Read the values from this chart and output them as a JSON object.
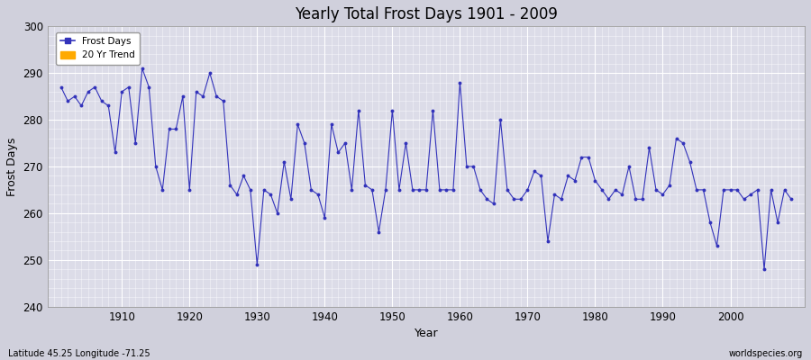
{
  "title": "Yearly Total Frost Days 1901 - 2009",
  "xlabel": "Year",
  "ylabel": "Frost Days",
  "footnote_left": "Latitude 45.25 Longitude -71.25",
  "footnote_right": "worldspecies.org",
  "legend": [
    "Frost Days",
    "20 Yr Trend"
  ],
  "legend_colors": [
    "#3333bb",
    "#ffaa00"
  ],
  "line_color": "#3333bb",
  "outer_bg": "#d0d0dc",
  "plot_bg": "#dcdce8",
  "grid_major_color": "#c8c8d4",
  "grid_minor_color": "#c8c8d4",
  "ylim": [
    240,
    300
  ],
  "yticks": [
    240,
    250,
    260,
    270,
    280,
    290,
    300
  ],
  "xlim": [
    1899,
    2011
  ],
  "xticks": [
    1910,
    1920,
    1930,
    1940,
    1950,
    1960,
    1970,
    1980,
    1990,
    2000
  ],
  "years": [
    1901,
    1902,
    1903,
    1904,
    1905,
    1906,
    1907,
    1908,
    1909,
    1910,
    1911,
    1912,
    1913,
    1914,
    1915,
    1916,
    1917,
    1918,
    1919,
    1920,
    1921,
    1922,
    1923,
    1924,
    1925,
    1926,
    1927,
    1928,
    1929,
    1930,
    1931,
    1932,
    1933,
    1934,
    1935,
    1936,
    1937,
    1938,
    1939,
    1940,
    1941,
    1942,
    1943,
    1944,
    1945,
    1946,
    1947,
    1948,
    1949,
    1950,
    1951,
    1952,
    1953,
    1954,
    1955,
    1956,
    1957,
    1958,
    1959,
    1960,
    1961,
    1962,
    1963,
    1964,
    1965,
    1966,
    1967,
    1968,
    1969,
    1970,
    1971,
    1972,
    1973,
    1974,
    1975,
    1976,
    1977,
    1978,
    1979,
    1980,
    1981,
    1982,
    1983,
    1984,
    1985,
    1986,
    1987,
    1988,
    1989,
    1990,
    1991,
    1992,
    1993,
    1994,
    1995,
    1996,
    1997,
    1998,
    1999,
    2000,
    2001,
    2002,
    2003,
    2004,
    2005,
    2006,
    2007,
    2008,
    2009
  ],
  "values": [
    287,
    284,
    285,
    283,
    286,
    287,
    284,
    283,
    273,
    286,
    287,
    275,
    291,
    287,
    270,
    265,
    278,
    278,
    285,
    265,
    286,
    285,
    290,
    285,
    284,
    266,
    264,
    268,
    265,
    249,
    265,
    264,
    260,
    271,
    263,
    279,
    275,
    265,
    264,
    259,
    279,
    273,
    275,
    265,
    282,
    266,
    265,
    256,
    265,
    282,
    265,
    275,
    265,
    265,
    265,
    282,
    265,
    265,
    265,
    288,
    270,
    270,
    265,
    263,
    262,
    280,
    265,
    263,
    263,
    265,
    269,
    268,
    254,
    264,
    263,
    268,
    267,
    272,
    272,
    267,
    265,
    263,
    265,
    264,
    270,
    263,
    263,
    274,
    265,
    264,
    266,
    276,
    275,
    271,
    265,
    265,
    258,
    253,
    265,
    265,
    265,
    263,
    264,
    265,
    248,
    265,
    258,
    265,
    263
  ]
}
